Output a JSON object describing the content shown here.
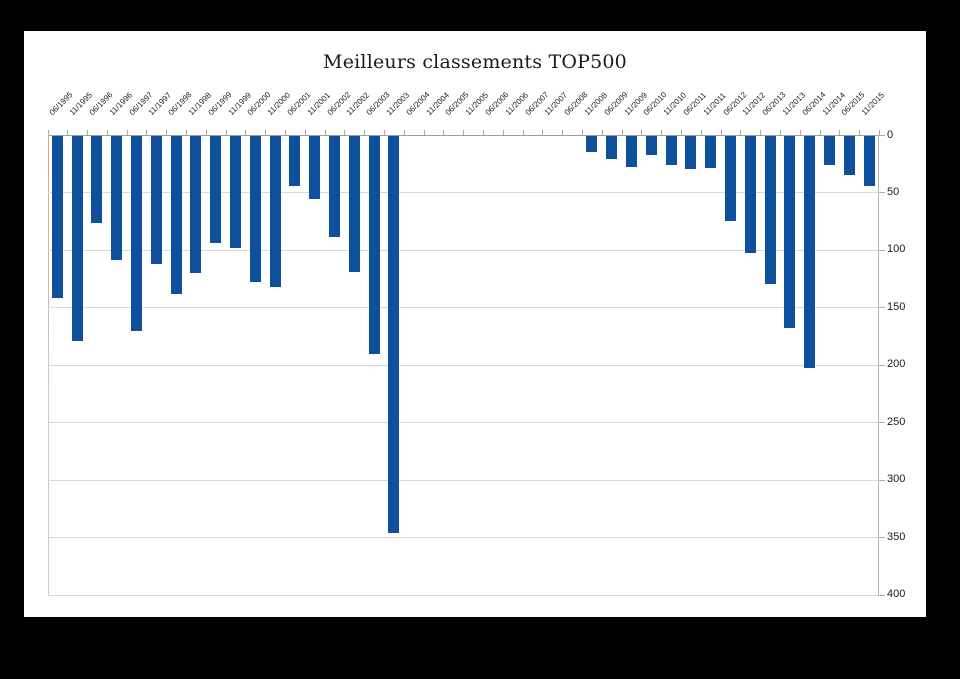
{
  "chart_data": {
    "type": "bar",
    "title": "Meilleurs classements TOP500",
    "orientation": "vertical-downward",
    "xlabel": "",
    "ylabel": "",
    "y_axis_side": "right",
    "y_axis_inverted_downward": true,
    "ylim": [
      0,
      400
    ],
    "y_ticks": [
      0,
      50,
      100,
      150,
      200,
      250,
      300,
      350,
      400
    ],
    "grid": true,
    "legend_position": "none",
    "bar_color": "#0f509d",
    "background_color": "#ffffff",
    "frame_color": "#000000",
    "categories": [
      "06/1995",
      "11/1995",
      "06/1996",
      "11/1996",
      "06/1997",
      "11/1997",
      "06/1998",
      "11/1998",
      "06/1999",
      "11/1999",
      "06/2000",
      "11/2000",
      "06/2001",
      "11/2001",
      "06/2002",
      "11/2002",
      "06/2003",
      "11/2003",
      "06/2004",
      "11/2004",
      "06/2005",
      "11/2005",
      "06/2006",
      "11/2006",
      "06/2007",
      "11/2007",
      "06/2008",
      "11/2008",
      "06/2009",
      "11/2009",
      "06/2010",
      "11/2010",
      "06/2011",
      "11/2011",
      "06/2012",
      "11/2012",
      "06/2013",
      "11/2013",
      "06/2014",
      "11/2014",
      "06/2015",
      "11/2015"
    ],
    "values": [
      142,
      179,
      77,
      109,
      171,
      112,
      138,
      120,
      94,
      98,
      128,
      132,
      44,
      56,
      89,
      119,
      191,
      346,
      null,
      null,
      null,
      null,
      null,
      null,
      null,
      null,
      null,
      15,
      21,
      28,
      17,
      26,
      30,
      29,
      75,
      103,
      130,
      168,
      203,
      26,
      35,
      44
    ]
  }
}
